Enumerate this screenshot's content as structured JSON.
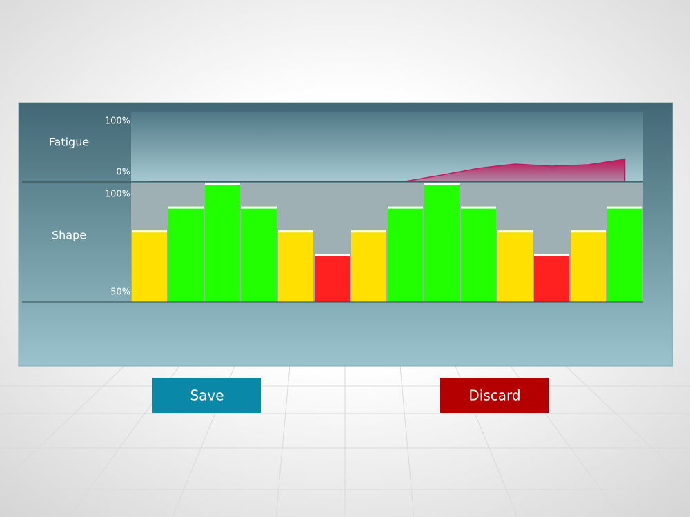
{
  "fatigue": {
    "label": "Fatigue",
    "ylim": [
      0,
      100
    ],
    "yticks": [
      {
        "value": 100,
        "label": "100%"
      },
      {
        "value": 0,
        "label": "0%"
      }
    ],
    "values": [
      0,
      0,
      0,
      0,
      0,
      0,
      0,
      0,
      9,
      19,
      25,
      22,
      24,
      32
    ],
    "color": "#c2185b"
  },
  "shape": {
    "label": "Shape",
    "ylim": [
      50,
      100
    ],
    "yticks": [
      {
        "value": 100,
        "label": "100%"
      },
      {
        "value": 50,
        "label": "50%"
      }
    ],
    "values": [
      80,
      90,
      100,
      90,
      80,
      70,
      80,
      90,
      100,
      90,
      80,
      70,
      80,
      90
    ],
    "colors": [
      "#ffe000",
      "#22ff00",
      "#22ff00",
      "#22ff00",
      "#ffe000",
      "#ff2020",
      "#ffe000",
      "#22ff00",
      "#22ff00",
      "#22ff00",
      "#ffe000",
      "#ff2020",
      "#ffe000",
      "#22ff00"
    ]
  },
  "buttons": {
    "save": "Save",
    "discard": "Discard"
  }
}
